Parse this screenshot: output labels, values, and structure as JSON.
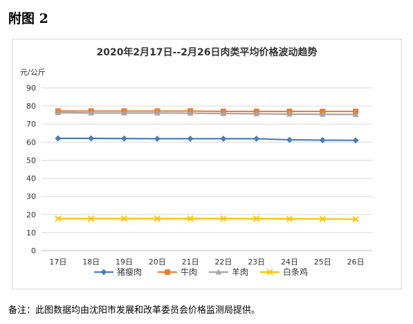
{
  "page": {
    "heading": "附图 2",
    "footnote": "备注：此图数据均由沈阳市发展和改革委员会价格监测局提供。"
  },
  "chart_data": {
    "type": "line",
    "title": "2020年2月17日--2月26日肉类平均价格波动趋势",
    "ylabel": "元/公斤",
    "xlabel": "",
    "categories": [
      "17日",
      "18日",
      "19日",
      "20日",
      "21日",
      "22日",
      "23日",
      "24日",
      "25日",
      "26日"
    ],
    "ylim": [
      0,
      90
    ],
    "yticks": [
      0,
      10,
      20,
      30,
      40,
      50,
      60,
      70,
      80,
      90
    ],
    "grid": true,
    "legend_position": "bottom",
    "series": [
      {
        "name": "猪瘦肉",
        "color": "#4a7ebb",
        "marker": "diamond",
        "values": [
          62.1,
          62.1,
          62.0,
          61.9,
          61.9,
          61.9,
          61.9,
          61.3,
          61.1,
          61.0
        ]
      },
      {
        "name": "牛肉",
        "color": "#ed7d31",
        "marker": "square",
        "values": [
          77.2,
          77.2,
          77.2,
          77.2,
          77.2,
          77.0,
          77.0,
          77.0,
          77.0,
          77.0
        ]
      },
      {
        "name": "羊肉",
        "color": "#a5a5a5",
        "marker": "triangle",
        "values": [
          76.3,
          76.1,
          76.1,
          76.1,
          76.0,
          75.8,
          75.7,
          75.5,
          75.4,
          75.3
        ]
      },
      {
        "name": "白条鸡",
        "color": "#ffc000",
        "marker": "x",
        "values": [
          17.7,
          17.7,
          17.7,
          17.7,
          17.7,
          17.7,
          17.7,
          17.6,
          17.5,
          17.4
        ]
      }
    ]
  }
}
